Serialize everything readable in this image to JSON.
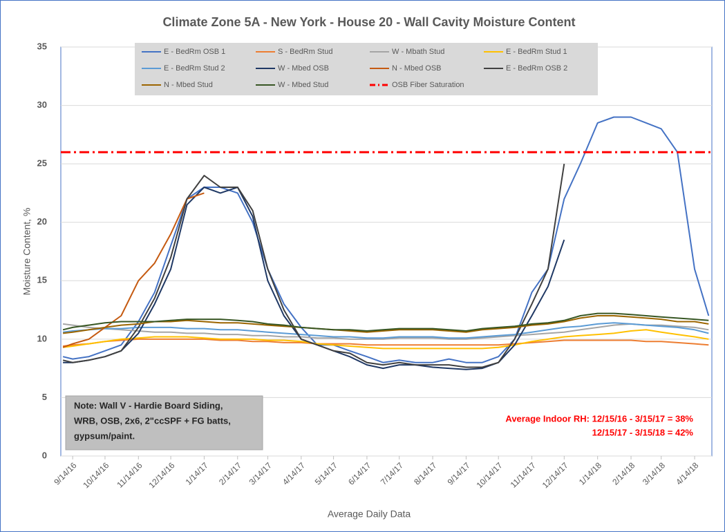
{
  "chart_data": {
    "type": "line",
    "title": "Climate Zone 5A - New York - House 20 - Wall Cavity Moisture Content",
    "x_label": "Average Daily Data",
    "y_label": "Moisture Content, %",
    "x": [
      "2016-09-05",
      "2016-09-14",
      "2016-09-29",
      "2016-10-14",
      "2016-10-29",
      "2016-11-14",
      "2016-11-29",
      "2016-12-14",
      "2016-12-29",
      "2017-01-14",
      "2017-01-29",
      "2017-02-14",
      "2017-02-28",
      "2017-03-14",
      "2017-03-29",
      "2017-04-14",
      "2017-04-29",
      "2017-05-14",
      "2017-05-29",
      "2017-06-14",
      "2017-06-29",
      "2017-07-14",
      "2017-07-29",
      "2017-08-14",
      "2017-08-29",
      "2017-09-14",
      "2017-09-29",
      "2017-10-14",
      "2017-10-29",
      "2017-11-14",
      "2017-11-29",
      "2017-12-14",
      "2017-12-29",
      "2018-01-14",
      "2018-01-29",
      "2018-02-14",
      "2018-02-28",
      "2018-03-14",
      "2018-03-29",
      "2018-04-14",
      "2018-04-27"
    ],
    "xlim": [
      "2016-09-03",
      "2018-04-30"
    ],
    "xticks": [
      {
        "value": "2016-09-14",
        "label": "9/14/16"
      },
      {
        "value": "2016-10-14",
        "label": "10/14/16"
      },
      {
        "value": "2016-11-14",
        "label": "11/14/16"
      },
      {
        "value": "2016-12-14",
        "label": "12/14/16"
      },
      {
        "value": "2017-01-14",
        "label": "1/14/17"
      },
      {
        "value": "2017-02-14",
        "label": "2/14/17"
      },
      {
        "value": "2017-03-14",
        "label": "3/14/17"
      },
      {
        "value": "2017-04-14",
        "label": "4/14/17"
      },
      {
        "value": "2017-05-14",
        "label": "5/14/17"
      },
      {
        "value": "2017-06-14",
        "label": "6/14/17"
      },
      {
        "value": "2017-07-14",
        "label": "7/14/17"
      },
      {
        "value": "2017-08-14",
        "label": "8/14/17"
      },
      {
        "value": "2017-09-14",
        "label": "9/14/17"
      },
      {
        "value": "2017-10-14",
        "label": "10/14/17"
      },
      {
        "value": "2017-11-14",
        "label": "11/14/17"
      },
      {
        "value": "2017-12-14",
        "label": "12/14/17"
      },
      {
        "value": "2018-01-14",
        "label": "1/14/18"
      },
      {
        "value": "2018-02-14",
        "label": "2/14/18"
      },
      {
        "value": "2018-03-14",
        "label": "3/14/18"
      },
      {
        "value": "2018-04-14",
        "label": "4/14/18"
      }
    ],
    "ylim": [
      0,
      35
    ],
    "yticks": [
      0,
      5,
      10,
      15,
      20,
      25,
      30,
      35
    ],
    "grid": true,
    "legend": "top",
    "series": [
      {
        "name": "E - BedRm OSB 1",
        "color": "#4472c4",
        "values": [
          8.5,
          8.3,
          8.5,
          9.0,
          9.5,
          11.5,
          14,
          18,
          22,
          23,
          23,
          22.5,
          20,
          16,
          13,
          11,
          9.5,
          9.5,
          9,
          8.5,
          8,
          8.2,
          8,
          8,
          8.3,
          8,
          8,
          8.5,
          10,
          14,
          16,
          22,
          25,
          28.5,
          29,
          29,
          28.5,
          28,
          26,
          16,
          12
        ]
      },
      {
        "name": "S - BedRm Stud",
        "color": "#ed7d31",
        "values": [
          9.4,
          9.5,
          9.6,
          9.8,
          9.9,
          10,
          10,
          10,
          10,
          10,
          9.9,
          9.9,
          9.8,
          9.8,
          9.7,
          9.7,
          9.6,
          9.6,
          9.6,
          9.5,
          9.5,
          9.5,
          9.5,
          9.5,
          9.5,
          9.5,
          9.5,
          9.5,
          9.6,
          9.7,
          9.8,
          9.9,
          9.9,
          9.9,
          9.9,
          9.9,
          9.8,
          9.8,
          9.7,
          9.6,
          9.5
        ]
      },
      {
        "name": "W - Mbath Stud",
        "color": "#a5a5a5",
        "values": [
          11.3,
          11.2,
          11,
          10.9,
          10.8,
          10.7,
          10.6,
          10.6,
          10.5,
          10.5,
          10.4,
          10.4,
          10.3,
          10.3,
          10.2,
          10.2,
          10.1,
          10.1,
          10,
          10,
          10,
          10.1,
          10.1,
          10.1,
          10,
          10,
          10.1,
          10.2,
          10.3,
          10.4,
          10.5,
          10.6,
          10.8,
          11,
          11.2,
          11.3,
          11.2,
          11.2,
          11.1,
          11,
          10.8
        ]
      },
      {
        "name": "E - BedRm Stud 1",
        "color": "#ffc000",
        "values": [
          9.3,
          9.4,
          9.6,
          9.8,
          10,
          10.1,
          10.2,
          10.2,
          10.2,
          10.1,
          10,
          10,
          10,
          9.9,
          9.9,
          9.8,
          9.6,
          9.5,
          9.4,
          9.3,
          9.2,
          9.2,
          9.2,
          9.2,
          9.2,
          9.2,
          9.2,
          9.3,
          9.5,
          9.8,
          10,
          10.2,
          10.3,
          10.4,
          10.5,
          10.7,
          10.8,
          10.6,
          10.4,
          10.2,
          10
        ]
      },
      {
        "name": "E - BedRm Stud 2",
        "color": "#5b9bd5",
        "values": [
          10.6,
          10.7,
          10.8,
          10.9,
          10.9,
          11,
          11,
          11,
          10.9,
          10.9,
          10.8,
          10.8,
          10.7,
          10.6,
          10.5,
          10.4,
          10.3,
          10.2,
          10.2,
          10.1,
          10.1,
          10.2,
          10.2,
          10.2,
          10.1,
          10.1,
          10.2,
          10.3,
          10.4,
          10.6,
          10.8,
          11,
          11.1,
          11.3,
          11.4,
          11.3,
          11.2,
          11.1,
          11,
          10.8,
          10.5
        ]
      },
      {
        "name": "W - Mbed OSB",
        "color": "#1f3864",
        "values": [
          8,
          8,
          8.2,
          8.5,
          9,
          10.5,
          13,
          16,
          21.5,
          23,
          22.5,
          23,
          20.5,
          15,
          12,
          10,
          9.5,
          9,
          8.5,
          7.8,
          7.5,
          7.8,
          7.8,
          7.6,
          7.5,
          7.4,
          7.5,
          8,
          9.5,
          12,
          14.5,
          18.5,
          null,
          null,
          null,
          null,
          null,
          null,
          null,
          null,
          null
        ]
      },
      {
        "name": "N - Mbed OSB",
        "color": "#c55a11",
        "values": [
          9.3,
          9.6,
          10,
          11,
          12,
          15,
          16.5,
          19,
          22,
          22.5,
          null,
          null,
          null,
          null,
          null,
          null,
          null,
          null,
          null,
          null,
          null,
          null,
          null,
          null,
          null,
          null,
          null,
          null,
          null,
          null,
          null,
          null,
          null,
          null,
          null,
          null,
          null,
          null,
          null,
          null,
          null
        ]
      },
      {
        "name": "E - BedRm OSB 2",
        "color": "#404040",
        "values": [
          8.2,
          8,
          8.2,
          8.5,
          9,
          11,
          13.5,
          17,
          22,
          24,
          23,
          23,
          21,
          16,
          12.5,
          10,
          9.5,
          9,
          8.8,
          8,
          7.8,
          8,
          7.8,
          7.8,
          7.8,
          7.6,
          7.6,
          8,
          10,
          13,
          16,
          25,
          null,
          null,
          null,
          null,
          null,
          null,
          null,
          null,
          null
        ]
      },
      {
        "name": "N - Mbed Stud",
        "color": "#9c6500",
        "values": [
          10.5,
          10.6,
          10.8,
          11,
          11.2,
          11.3,
          11.5,
          11.5,
          11.6,
          11.5,
          11.4,
          11.4,
          11.3,
          11.2,
          11.1,
          11,
          10.9,
          10.8,
          10.7,
          10.6,
          10.7,
          10.8,
          10.8,
          10.8,
          10.7,
          10.6,
          10.8,
          10.9,
          11,
          11.2,
          11.3,
          11.5,
          11.8,
          12,
          12,
          11.9,
          11.8,
          11.7,
          11.5,
          11.5,
          11.3
        ]
      },
      {
        "name": "W - Mbed Stud",
        "color": "#375623",
        "values": [
          10.8,
          11,
          11.2,
          11.4,
          11.5,
          11.5,
          11.5,
          11.6,
          11.7,
          11.7,
          11.7,
          11.6,
          11.5,
          11.3,
          11.2,
          11,
          10.9,
          10.8,
          10.8,
          10.7,
          10.8,
          10.9,
          10.9,
          10.9,
          10.8,
          10.7,
          10.9,
          11,
          11.1,
          11.3,
          11.4,
          11.6,
          12,
          12.2,
          12.2,
          12.1,
          12,
          11.9,
          11.8,
          11.7,
          11.6
        ]
      }
    ],
    "threshold": {
      "name": "OSB Fiber Saturation",
      "value": 26,
      "color": "#ff0000"
    },
    "note": [
      "Note: Wall V - Hardie Board Siding,",
      "WRB, OSB, 2x6, 2\"ccSPF + FG batts,",
      "gypsum/paint."
    ],
    "rh_annotation": [
      "Average Indoor RH: 12/15/16 - 3/15/17 = 38%",
      "12/15/17 - 3/15/18 = 42%"
    ]
  }
}
